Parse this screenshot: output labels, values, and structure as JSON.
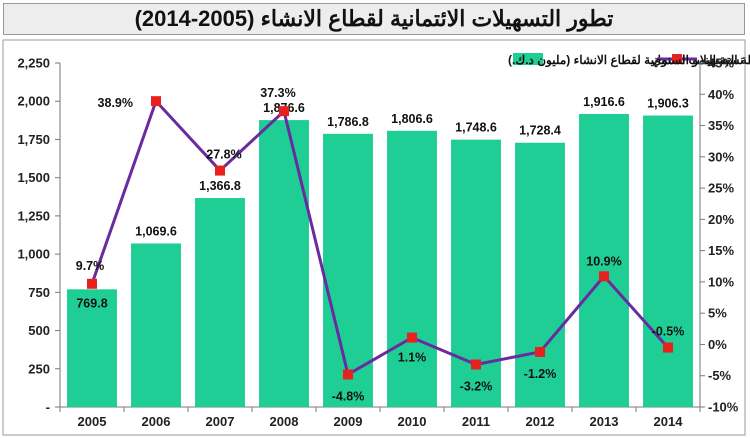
{
  "chart_data": {
    "type": "bar",
    "title": "تطور التسهيلات الائتمانية لقطاع الانشاء (2005-2014)",
    "categories": [
      "2005",
      "2006",
      "2007",
      "2008",
      "2009",
      "2010",
      "2011",
      "2012",
      "2013",
      "2014"
    ],
    "series": [
      {
        "name": "محفظة التسهيلات الائتمانية لقطاع الانشاء (مليون د.ك.)",
        "type": "bar",
        "axis": "left",
        "values": [
          769.8,
          1069.6,
          1366.8,
          1876.6,
          1786.8,
          1806.6,
          1748.6,
          1728.4,
          1916.6,
          1906.3
        ],
        "labels": [
          "769.8",
          "1,069.6",
          "1,366.8",
          "1,876.6",
          "1,786.8",
          "1,806.6",
          "1,748.6",
          "1,728.4",
          "1,916.6",
          "1,906.3"
        ],
        "color": "#1fce95"
      },
      {
        "name": "نسبة النمو السنوي",
        "type": "line",
        "axis": "right",
        "values": [
          9.7,
          38.9,
          27.8,
          37.3,
          -4.8,
          1.1,
          -3.2,
          -1.2,
          10.9,
          -0.5
        ],
        "labels": [
          "9.7%",
          "38.9%",
          "27.8%",
          "37.3%",
          "-4.8%",
          "1.1%",
          "-3.2%",
          "-1.2%",
          "10.9%",
          "-0.5%"
        ],
        "color": "#6a2aa0",
        "marker_color": "#e8201e"
      }
    ],
    "y_left": {
      "ylim": [
        0,
        2250
      ],
      "ticks": [
        0,
        250,
        500,
        750,
        1000,
        1250,
        1500,
        1750,
        2000,
        2250
      ],
      "tick_labels": [
        "-",
        "250",
        "500",
        "750",
        "1,000",
        "1,250",
        "1,500",
        "1,750",
        "2,000",
        "2,250"
      ]
    },
    "y_right": {
      "ylim": [
        -10,
        45
      ],
      "ticks": [
        -10,
        -5,
        0,
        5,
        10,
        15,
        20,
        25,
        30,
        35,
        40,
        45
      ],
      "tick_labels": [
        "-10%",
        "-5%",
        "0%",
        "5%",
        "10%",
        "15%",
        "20%",
        "25%",
        "30%",
        "35%",
        "40%",
        "45%"
      ]
    },
    "grid": false,
    "legend_position": "top"
  }
}
